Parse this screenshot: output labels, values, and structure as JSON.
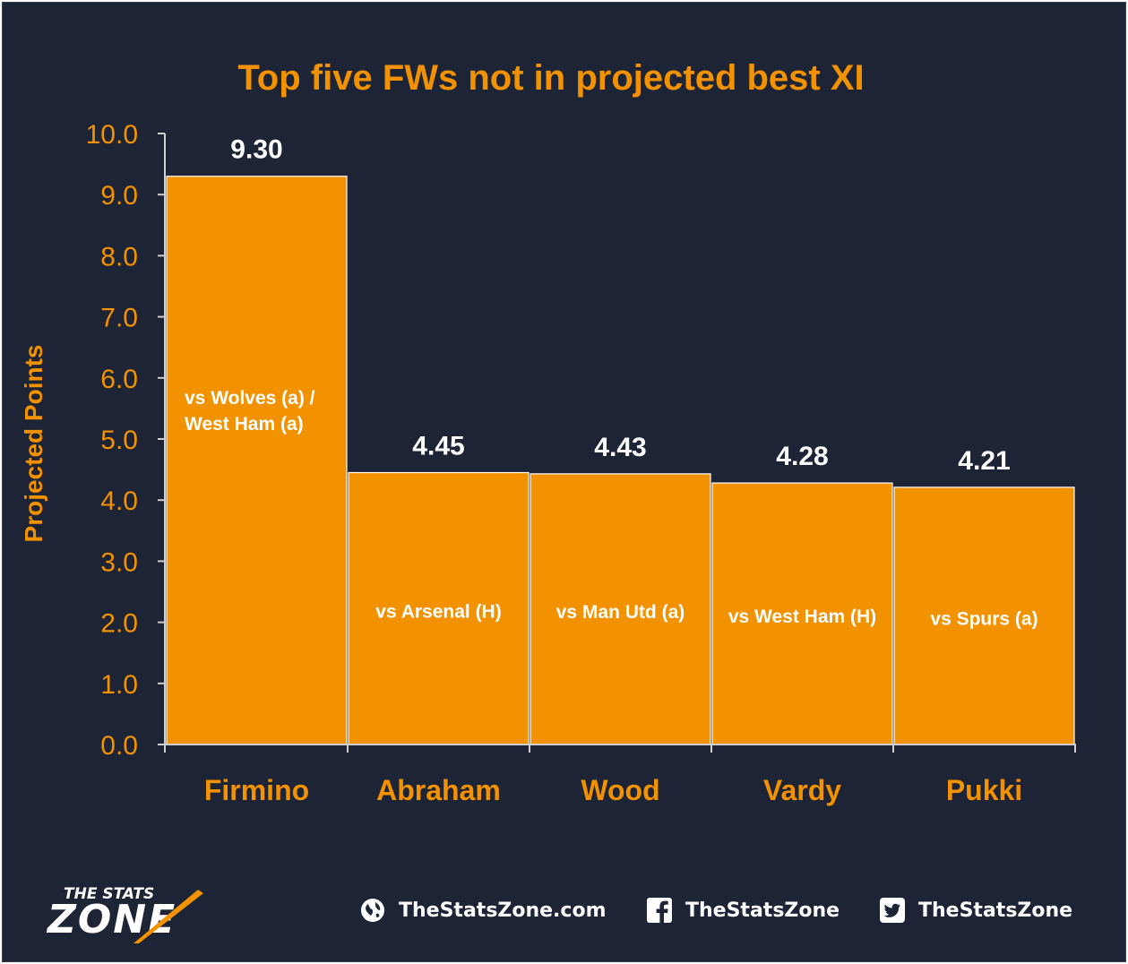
{
  "chart_data": {
    "type": "bar",
    "title": "Top five FWs not in projected best XI",
    "ylabel": "Projected Points",
    "xlabel": "",
    "categories": [
      "Firmino",
      "Abraham",
      "Wood",
      "Vardy",
      "Pukki"
    ],
    "values": [
      9.3,
      4.45,
      4.43,
      4.28,
      4.21
    ],
    "value_labels": [
      "9.30",
      "4.45",
      "4.43",
      "4.28",
      "4.21"
    ],
    "bar_notes": [
      [
        "vs Wolves (a) /",
        "West Ham (a)"
      ],
      [
        "vs Arsenal (H)"
      ],
      [
        "vs Man Utd (a)"
      ],
      [
        "vs West Ham (H)"
      ],
      [
        "vs Spurs (a)"
      ]
    ],
    "ylim": [
      0,
      10
    ],
    "yticks": [
      "0.0",
      "1.0",
      "2.0",
      "3.0",
      "4.0",
      "5.0",
      "6.0",
      "7.0",
      "8.0",
      "9.0",
      "10.0"
    ],
    "grid": false,
    "colors": {
      "bar": "#f39200",
      "bar_edge": "#ffffff",
      "title": "#f39200",
      "axis_text": "#f39200",
      "value_text": "#ffffff",
      "background": "#1d2435",
      "axis_line": "#cfcfcf"
    }
  },
  "footer": {
    "logo_text_top": "THE STATS",
    "logo_text_bottom": "ZONE",
    "website": "TheStatsZone.com",
    "facebook": "TheStatsZone",
    "twitter": "TheStatsZone",
    "website_icon": "globe-icon",
    "facebook_icon": "facebook-icon",
    "twitter_icon": "twitter-icon"
  }
}
